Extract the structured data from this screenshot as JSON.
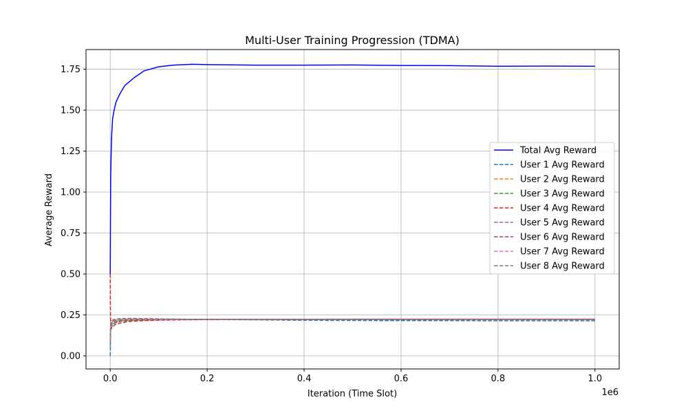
{
  "chart_data": {
    "type": "line",
    "title": "Multi-User Training Progression (TDMA)",
    "xlabel": "Iteration (Time Slot)",
    "ylabel": "Average Reward",
    "x_offset_label": "1e6",
    "xlim": [
      -0.05,
      1.05
    ],
    "ylim": [
      -0.08,
      1.87
    ],
    "x_ticks": [
      0.0,
      0.2,
      0.4,
      0.6,
      0.8,
      1.0
    ],
    "x_tick_labels": [
      "0.0",
      "0.2",
      "0.4",
      "0.6",
      "0.8",
      "1.0"
    ],
    "y_ticks": [
      0.0,
      0.25,
      0.5,
      0.75,
      1.0,
      1.25,
      1.5,
      1.75
    ],
    "y_tick_labels": [
      "0.00",
      "0.25",
      "0.50",
      "0.75",
      "1.00",
      "1.25",
      "1.50",
      "1.75"
    ],
    "grid": true,
    "legend_position": "center-right",
    "series": [
      {
        "name": "Total Avg Reward",
        "color": "#0000ff",
        "dash": "solid",
        "x": [
          0.0,
          0.0005,
          0.001,
          0.002,
          0.003,
          0.005,
          0.008,
          0.012,
          0.02,
          0.03,
          0.05,
          0.07,
          0.1,
          0.13,
          0.17,
          0.2,
          0.3,
          0.4,
          0.5,
          0.6,
          0.7,
          0.8,
          0.9,
          1.0
        ],
        "y": [
          0.5,
          0.85,
          1.1,
          1.25,
          1.35,
          1.45,
          1.5,
          1.55,
          1.6,
          1.65,
          1.7,
          1.74,
          1.765,
          1.775,
          1.78,
          1.778,
          1.775,
          1.775,
          1.776,
          1.773,
          1.772,
          1.768,
          1.769,
          1.768
        ]
      },
      {
        "name": "User 1 Avg Reward",
        "color": "#1f77b4",
        "dash": "dashed",
        "x": [
          0.0,
          0.001,
          0.003,
          0.006,
          0.01,
          0.02,
          0.04,
          0.07,
          0.1,
          0.15,
          0.2,
          0.3,
          0.4,
          0.5,
          0.6,
          0.7,
          0.8,
          0.9,
          1.0
        ],
        "y": [
          0.0,
          0.16,
          0.18,
          0.19,
          0.2,
          0.21,
          0.215,
          0.218,
          0.22,
          0.222,
          0.222,
          0.22,
          0.217,
          0.216,
          0.215,
          0.215,
          0.214,
          0.214,
          0.214
        ]
      },
      {
        "name": "User 2 Avg Reward",
        "color": "#ff7f0e",
        "dash": "dashed",
        "x": [
          0.0,
          0.001,
          0.003,
          0.006,
          0.01,
          0.02,
          0.04,
          0.07,
          0.1,
          0.15,
          0.2,
          0.3,
          0.4,
          0.5,
          0.6,
          0.7,
          0.8,
          0.9,
          1.0
        ],
        "y": [
          0.05,
          0.17,
          0.19,
          0.2,
          0.205,
          0.212,
          0.217,
          0.22,
          0.221,
          0.222,
          0.222,
          0.221,
          0.221,
          0.222,
          0.222,
          0.221,
          0.221,
          0.221,
          0.221
        ]
      },
      {
        "name": "User 3 Avg Reward",
        "color": "#2ca02c",
        "dash": "dashed",
        "x": [
          0.0,
          0.001,
          0.003,
          0.006,
          0.01,
          0.02,
          0.04,
          0.07,
          0.1,
          0.15,
          0.2,
          0.3,
          0.4,
          0.5,
          0.6,
          0.7,
          0.8,
          0.9,
          1.0
        ],
        "y": [
          0.08,
          0.18,
          0.195,
          0.2,
          0.21,
          0.215,
          0.218,
          0.22,
          0.221,
          0.222,
          0.222,
          0.222,
          0.222,
          0.222,
          0.222,
          0.222,
          0.222,
          0.222,
          0.222
        ]
      },
      {
        "name": "User 4 Avg Reward",
        "color": "#d62728",
        "dash": "dashed",
        "x": [
          0.0,
          0.0003,
          0.001,
          0.003,
          0.006,
          0.01,
          0.02,
          0.04,
          0.07,
          0.1,
          0.15,
          0.2,
          0.3,
          0.4,
          0.5,
          0.6,
          0.7,
          0.8,
          0.9,
          1.0
        ],
        "y": [
          0.5,
          0.3,
          0.16,
          0.17,
          0.18,
          0.19,
          0.2,
          0.21,
          0.215,
          0.218,
          0.22,
          0.221,
          0.222,
          0.222,
          0.223,
          0.223,
          0.223,
          0.223,
          0.223,
          0.223
        ]
      },
      {
        "name": "User 5 Avg Reward",
        "color": "#9467bd",
        "dash": "dashed",
        "x": [
          0.0,
          0.001,
          0.003,
          0.006,
          0.01,
          0.02,
          0.04,
          0.07,
          0.1,
          0.15,
          0.2,
          0.3,
          0.4,
          0.5,
          0.6,
          0.7,
          0.8,
          0.9,
          1.0
        ],
        "y": [
          0.1,
          0.19,
          0.2,
          0.21,
          0.215,
          0.22,
          0.222,
          0.222,
          0.222,
          0.222,
          0.222,
          0.222,
          0.222,
          0.222,
          0.222,
          0.222,
          0.222,
          0.222,
          0.222
        ]
      },
      {
        "name": "User 6 Avg Reward",
        "color": "#8c564b",
        "dash": "dashed",
        "x": [
          0.0,
          0.001,
          0.003,
          0.006,
          0.01,
          0.02,
          0.04,
          0.07,
          0.1,
          0.15,
          0.2,
          0.3,
          0.4,
          0.5,
          0.6,
          0.7,
          0.8,
          0.9,
          1.0
        ],
        "y": [
          0.12,
          0.2,
          0.21,
          0.215,
          0.218,
          0.222,
          0.224,
          0.224,
          0.223,
          0.223,
          0.223,
          0.223,
          0.223,
          0.223,
          0.223,
          0.223,
          0.223,
          0.223,
          0.223
        ]
      },
      {
        "name": "User 7 Avg Reward",
        "color": "#e377c2",
        "dash": "dashed",
        "x": [
          0.0,
          0.001,
          0.003,
          0.006,
          0.01,
          0.02,
          0.04,
          0.07,
          0.1,
          0.15,
          0.2,
          0.3,
          0.4,
          0.5,
          0.6,
          0.7,
          0.8,
          0.9,
          1.0
        ],
        "y": [
          0.1,
          0.18,
          0.2,
          0.21,
          0.215,
          0.22,
          0.222,
          0.223,
          0.223,
          0.223,
          0.224,
          0.224,
          0.224,
          0.225,
          0.225,
          0.225,
          0.225,
          0.225,
          0.225
        ]
      },
      {
        "name": "User 8 Avg Reward",
        "color": "#7f7f7f",
        "dash": "dashed",
        "x": [
          0.0,
          0.001,
          0.003,
          0.006,
          0.01,
          0.02,
          0.04,
          0.07,
          0.1,
          0.15,
          0.2,
          0.3,
          0.4,
          0.5,
          0.6,
          0.7,
          0.8,
          0.9,
          1.0
        ],
        "y": [
          0.05,
          0.2,
          0.215,
          0.22,
          0.225,
          0.228,
          0.229,
          0.228,
          0.226,
          0.224,
          0.223,
          0.222,
          0.222,
          0.222,
          0.221,
          0.221,
          0.221,
          0.221,
          0.221
        ]
      }
    ]
  }
}
